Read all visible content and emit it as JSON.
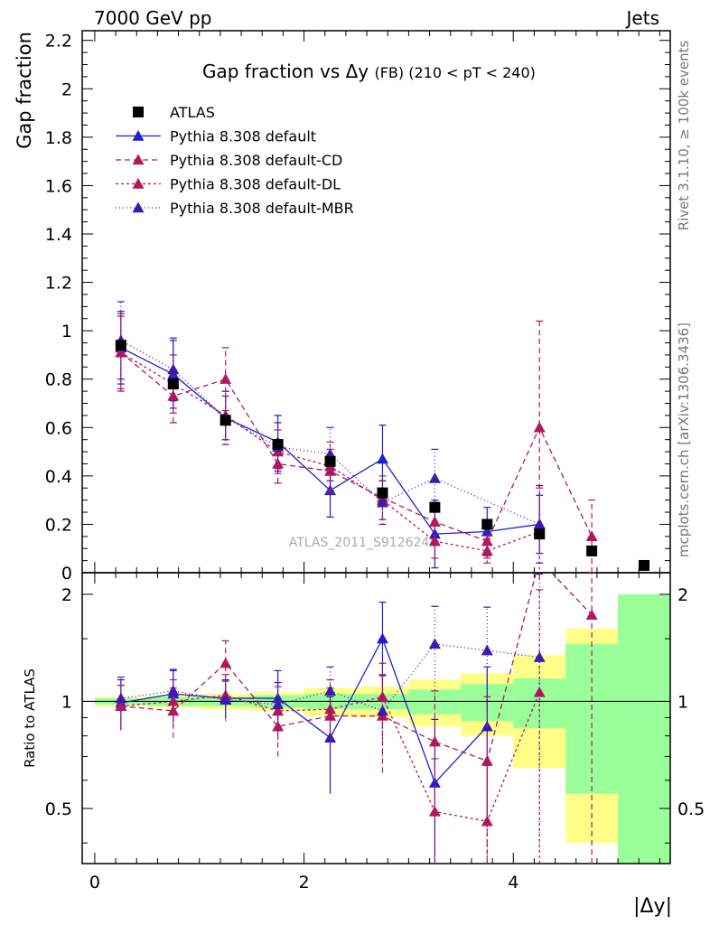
{
  "header": {
    "left": "7000 GeV pp",
    "right": "Jets"
  },
  "side_text": {
    "rivet": "Rivet 3.1.10, ≥ 100k events",
    "mcplots": "mcplots.cern.ch [arXiv:1306.3436]"
  },
  "chart_data": {
    "type": "line",
    "title_main": "Gap fraction vs",
    "title_delta": "Δy",
    "title_sub": "(FB) (210 < pT < 240)",
    "watermark": "ATLAS_2011_S9126244",
    "xlabel": "|Δy|",
    "ylabel_main": "Gap fraction",
    "ylabel_ratio": "Ratio to ATLAS",
    "x_range": [
      -0.12,
      5.5
    ],
    "x_ticks": [
      0,
      2,
      4
    ],
    "main_y_range": [
      0,
      2.24
    ],
    "main_y_ticks": [
      "0",
      "0.2",
      "0.4",
      "0.6",
      "0.8",
      "1",
      "1.2",
      "1.4",
      "1.6",
      "1.8",
      "2",
      "2.2"
    ],
    "ratio_y_range": [
      0.35,
      2.3
    ],
    "ratio_y_ticks": [
      "0.5",
      "1",
      "2"
    ],
    "ratio_y_scale": "log",
    "x": [
      0.25,
      0.75,
      1.25,
      1.75,
      2.25,
      2.75,
      3.25,
      3.75,
      4.25,
      4.75,
      5.25
    ],
    "bin_edges": [
      0,
      0.5,
      1,
      1.5,
      2,
      2.5,
      3,
      3.5,
      4,
      4.5,
      5,
      5.5
    ],
    "data": {
      "name": "ATLAS",
      "values": [
        0.94,
        0.78,
        0.63,
        0.53,
        0.46,
        0.33,
        0.27,
        0.2,
        0.16,
        0.09,
        0.03
      ]
    },
    "band_stat": [
      0.02,
      0.03,
      0.03,
      0.04,
      0.05,
      0.05,
      0.08,
      0.12,
      0.16,
      0.45,
      1.0
    ],
    "band_total": [
      0.03,
      0.04,
      0.05,
      0.06,
      0.09,
      0.1,
      0.15,
      0.2,
      0.35,
      0.6,
      1.0
    ],
    "series": [
      {
        "name": "Pythia 8.308 default",
        "color": "#1f1fcc",
        "dash": "",
        "values": [
          0.93,
          0.82,
          0.64,
          0.54,
          0.34,
          0.47,
          0.16,
          0.17,
          0.2,
          null,
          null
        ],
        "err": [
          0.15,
          0.14,
          0.09,
          0.11,
          0.11,
          0.14,
          0.14,
          0.1,
          0.12,
          null,
          null
        ],
        "ratio": [
          0.99,
          1.05,
          1.02,
          1.02,
          0.79,
          1.5,
          0.59,
          0.85,
          null,
          null,
          null
        ],
        "ratio_err": [
          0.16,
          0.18,
          0.13,
          0.2,
          0.24,
          0.4,
          0.3,
          0.4,
          null,
          null,
          null
        ]
      },
      {
        "name": "Pythia 8.308 default-CD",
        "color": "#b3185a",
        "dash": "6,4",
        "values": [
          0.91,
          0.73,
          0.8,
          0.45,
          0.42,
          0.31,
          0.21,
          0.13,
          0.6,
          0.15,
          null
        ],
        "err": [
          0.15,
          0.11,
          0.13,
          0.08,
          0.09,
          0.09,
          0.08,
          0.07,
          0.44,
          0.15,
          null
        ],
        "ratio": [
          0.97,
          0.94,
          1.28,
          0.85,
          0.91,
          0.91,
          0.77,
          0.68,
          2.5,
          1.75,
          null
        ],
        "ratio_err": [
          0.14,
          0.15,
          0.2,
          0.15,
          0.18,
          0.28,
          0.3,
          0.35,
          0.3,
          1.4,
          null
        ]
      },
      {
        "name": "Pythia 8.308 default-DL",
        "color": "#b3185a",
        "dash": "3,3",
        "values": [
          0.91,
          0.78,
          0.65,
          0.5,
          0.44,
          0.3,
          0.13,
          0.09,
          0.17,
          null,
          null
        ],
        "err": [
          0.16,
          0.12,
          0.1,
          0.09,
          0.1,
          0.08,
          0.07,
          0.05,
          0.18,
          null,
          null
        ],
        "ratio": [
          0.97,
          1.0,
          1.04,
          0.94,
          0.95,
          1.03,
          0.49,
          0.46,
          1.06,
          null,
          null
        ],
        "ratio_err": [
          0.14,
          0.15,
          0.15,
          0.16,
          0.2,
          0.25,
          0.2,
          0.2,
          1.0,
          null,
          null
        ]
      },
      {
        "name": "Pythia 8.308 default-MBR",
        "color": "#3a1ab0",
        "dash": "1,3",
        "values": [
          0.96,
          0.84,
          0.64,
          0.52,
          0.49,
          0.29,
          0.39,
          null,
          0.2,
          null,
          null
        ],
        "err": [
          0.16,
          0.13,
          0.11,
          0.1,
          0.11,
          0.09,
          0.12,
          null,
          0.16,
          null,
          null
        ],
        "ratio": [
          1.02,
          1.07,
          1.01,
          0.98,
          1.07,
          0.94,
          1.45,
          1.39,
          1.33,
          null,
          null
        ],
        "ratio_err": [
          0.15,
          0.15,
          0.13,
          0.15,
          0.18,
          0.24,
          0.4,
          0.45,
          0.95,
          null,
          null
        ]
      }
    ],
    "legend_position": "top-left",
    "colors": {
      "band_stat": "#99ff99",
      "band_total": "#ffff88",
      "data": "#000000"
    }
  }
}
